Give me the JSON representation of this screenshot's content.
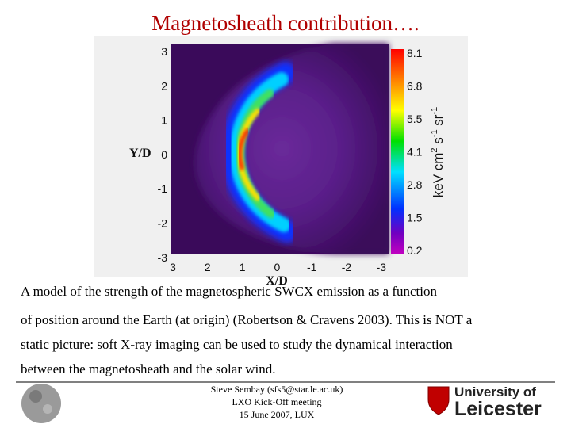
{
  "title": "Magnetosheath contribution….",
  "figure": {
    "y_label": "Y/D",
    "x_label": "X/D",
    "y_ticks": [
      "3",
      "2",
      "1",
      "0",
      "-1",
      "-2",
      "-3"
    ],
    "x_ticks": [
      "3",
      "2",
      "1",
      "0",
      "-1",
      "-2",
      "-3"
    ],
    "colorbar_ticks": [
      "8.1",
      "6.8",
      "5.5",
      "4.1",
      "2.8",
      "1.5",
      "0.2"
    ],
    "colorbar_unit": [
      "keV cm",
      "2",
      " s",
      "-1",
      " sr",
      "-1"
    ]
  },
  "caption": [
    "A model of the strength of the magnetospheric SWCX emission as a function",
    "of position around the Earth (at origin) (Robertson & Cravens 2003). This is NOT a",
    "static picture: soft X-ray  imaging can be used to study the dynamical interaction",
    "between the magnetosheath and the solar wind."
  ],
  "footer": {
    "contact": [
      "Steve Sembay (sfs5@star.le.ac.uk)",
      "LXO Kick-Off meeting",
      "15 June 2007, LUX"
    ],
    "logo": [
      "University of",
      "Leicester"
    ]
  }
}
